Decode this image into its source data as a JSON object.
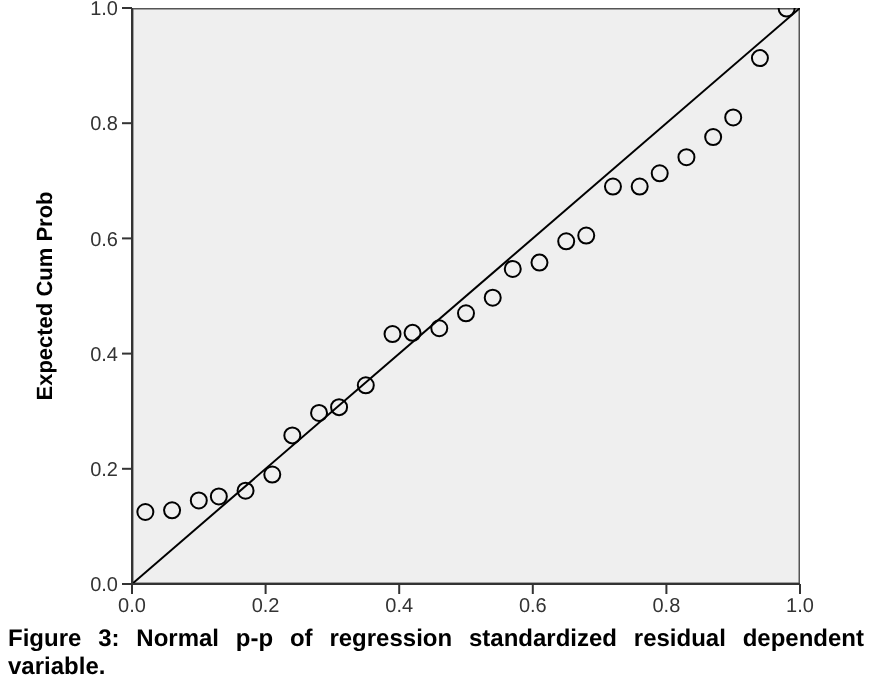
{
  "chart_data": {
    "type": "scatter",
    "ylabel": "Expected Cum Prob",
    "xlim": [
      0,
      1
    ],
    "ylim": [
      0,
      1
    ],
    "xticks": [
      {
        "value": 0,
        "label": "0.0"
      },
      {
        "value": 0.2,
        "label": "0.2"
      },
      {
        "value": 0.4,
        "label": "0.4"
      },
      {
        "value": 0.6,
        "label": "0.6"
      },
      {
        "value": 0.8,
        "label": "0.8"
      },
      {
        "value": 1,
        "label": "1.0"
      }
    ],
    "yticks": [
      {
        "value": 0,
        "label": "0.0"
      },
      {
        "value": 0.2,
        "label": "0.2"
      },
      {
        "value": 0.4,
        "label": "0.4"
      },
      {
        "value": 0.6,
        "label": "0.6"
      },
      {
        "value": 0.8,
        "label": "0.8"
      },
      {
        "value": 1,
        "label": "1.0"
      }
    ],
    "grid": false,
    "legend": false,
    "marker": "circle",
    "series": [
      {
        "color": "#000000",
        "x": [
          0.02,
          0.06,
          0.1,
          0.13,
          0.17,
          0.21,
          0.24,
          0.28,
          0.31,
          0.35,
          0.39,
          0.42,
          0.46,
          0.5,
          0.54,
          0.57,
          0.61,
          0.65,
          0.68,
          0.72,
          0.76,
          0.79,
          0.83,
          0.87,
          0.9,
          0.94,
          0.98
        ],
        "values": [
          0.125,
          0.128,
          0.145,
          0.152,
          0.162,
          0.19,
          0.258,
          0.297,
          0.307,
          0.345,
          0.434,
          0.436,
          0.444,
          0.47,
          0.497,
          0.547,
          0.558,
          0.595,
          0.605,
          0.69,
          0.69,
          0.713,
          0.741,
          0.776,
          0.81,
          0.913,
          0.999
        ]
      },
      {
        "type": "line",
        "color": "#000000",
        "marker": "none",
        "x": [
          0,
          1
        ],
        "values": [
          0,
          1
        ]
      }
    ],
    "annotations": [
      "Figure 3: Normal p-p of regression standardized residual dependent variable."
    ]
  }
}
